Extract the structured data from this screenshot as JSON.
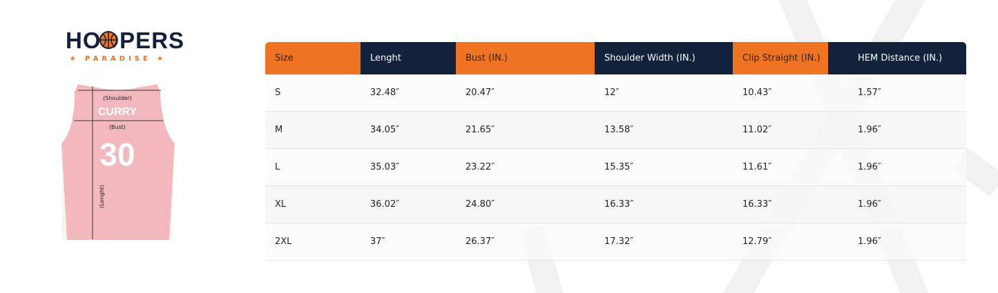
{
  "brand": {
    "name": "HOOPERS",
    "tagline": "PARADISE",
    "colors": {
      "orange": "#ee7322",
      "navy": "#13213a"
    }
  },
  "diagram": {
    "name": "CURRY",
    "number": "30",
    "labels": {
      "shoulder": "(Shoulder)",
      "bust": "(Bust)",
      "length": "(Lenght)"
    }
  },
  "table": {
    "headers": [
      "Size",
      "Lenght",
      "Bust (IN.)",
      "Shoulder Width (IN.)",
      "Clip Straight (IN.)",
      "HEM Distance (IN.)"
    ],
    "rows": [
      [
        "S",
        "32.48″",
        "20.47″",
        "12″",
        "10.43″",
        "1.57″"
      ],
      [
        "M",
        "34.05″",
        "21.65″",
        "13.58″",
        "11.02″",
        "1.96″"
      ],
      [
        "L",
        "35.03″",
        "23.22″",
        "15.35″",
        "11.61″",
        "1.96″"
      ],
      [
        "XL",
        "36.02″",
        "24.80″",
        "16.33″",
        "16.33″",
        "1.96″"
      ],
      [
        "2XL",
        "37″",
        "26.37″",
        "17.32″",
        "12.79″",
        "1.96″"
      ]
    ]
  }
}
